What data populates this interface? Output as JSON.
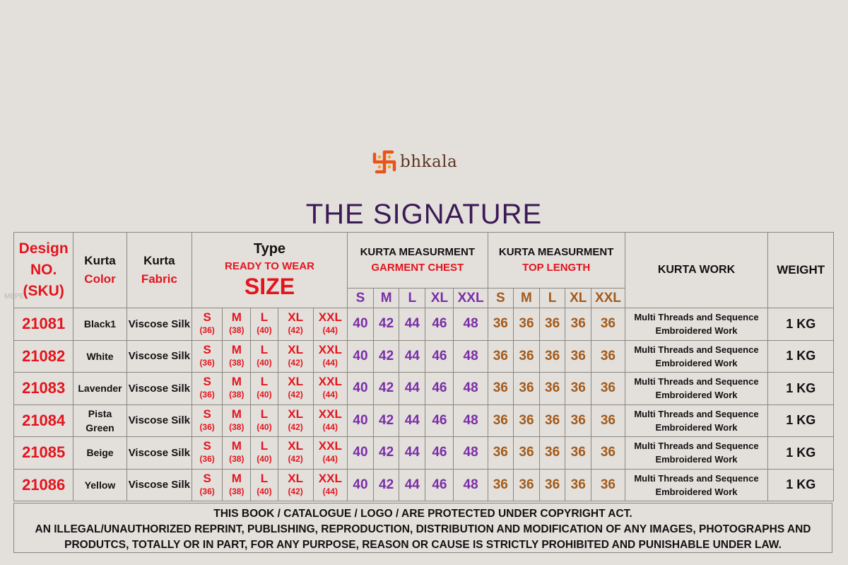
{
  "brand": {
    "name": "bhkala"
  },
  "title": "THE SIGNATURE",
  "watermark": "MEPE",
  "colors": {
    "red": "#e4141c",
    "purple": "#7a2ea6",
    "brown": "#a35a1a",
    "title": "#3b1a55",
    "background": "#e3e0dc"
  },
  "header": {
    "design_line1": "Design",
    "design_line2": "NO.",
    "design_line3": "(SKU)",
    "kurta": "Kurta",
    "color": "Color",
    "fabric": "Fabric",
    "type": "Type",
    "ready_to_wear": "READY TO WEAR",
    "size": "SIZE",
    "measurement": "KURTA MEASURMENT",
    "measurement2": "KURTA  MEASURMENT",
    "garment_chest": "GARMENT CHEST",
    "top_length": "TOP LENGTH",
    "kurta_work": "KURTA  WORK",
    "weight": "WEIGHT",
    "size_labels": [
      "S",
      "M",
      "L",
      "XL",
      "XXL"
    ]
  },
  "sizes": [
    {
      "label": "S",
      "value": "(36)"
    },
    {
      "label": "M",
      "value": "(38)"
    },
    {
      "label": "L",
      "value": "(40)"
    },
    {
      "label": "XL",
      "value": "(42)"
    },
    {
      "label": "XXL",
      "value": "(44)"
    }
  ],
  "chest": [
    "40",
    "42",
    "44",
    "46",
    "48"
  ],
  "length": [
    "36",
    "36",
    "36",
    "36",
    "36"
  ],
  "rows": [
    {
      "sku": "21081",
      "color": "Black1",
      "color2": "",
      "fabric": "Viscose Silk",
      "work1": "Multi Threads and Sequence",
      "work2": "Embroidered Work",
      "weight": "1 KG"
    },
    {
      "sku": "21082",
      "color": "White",
      "color2": "",
      "fabric": "Viscose Silk",
      "work1": "Multi Threads and Sequence",
      "work2": "Embroidered Work",
      "weight": "1 KG"
    },
    {
      "sku": "21083",
      "color": "Lavender",
      "color2": "",
      "fabric": "Viscose Silk",
      "work1": "Multi Threads and Sequence",
      "work2": "Embroidered Work",
      "weight": "1 KG"
    },
    {
      "sku": "21084",
      "color": "Pista",
      "color2": "Green",
      "fabric": "Viscose Silk",
      "work1": "Multi Threads and Sequence",
      "work2": "Embroidered Work",
      "weight": "1 KG"
    },
    {
      "sku": "21085",
      "color": "Beige",
      "color2": "",
      "fabric": "Viscose Silk",
      "work1": "Multi Threads and Sequence",
      "work2": "Embroidered Work",
      "weight": "1 KG"
    },
    {
      "sku": "21086",
      "color": "Yellow",
      "color2": "",
      "fabric": "Viscose Silk",
      "work1": "Multi Threads and Sequence",
      "work2": "Embroidered Work",
      "weight": "1 KG"
    }
  ],
  "footer": {
    "line1": "THIS BOOK / CATALOGUE  / LOGO / ARE  PROTECTED UNDER COPYRIGHT ACT.",
    "line2": "AN ILLEGAL/UNAUTHORIZED REPRINT, PUBLISHING, REPRODUCTION, DISTRIBUTION AND MODIFICATION OF ANY IMAGES, PHOTOGRAPHS AND",
    "line3": "PRODUTCS,    TOTALLY OR IN PART, FOR ANY PURPOSE, REASON OR CAUSE IS STRICTLY PROHIBITED AND PUNISHABLE UNDER LAW."
  }
}
